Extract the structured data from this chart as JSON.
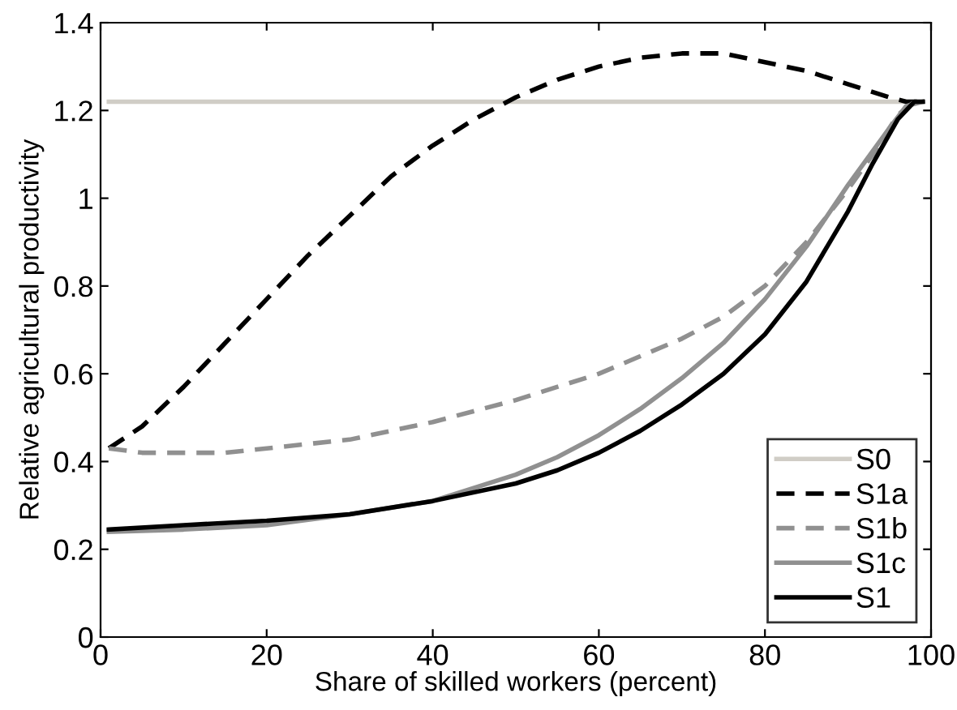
{
  "chart_data": {
    "type": "line",
    "xlabel": "Share of skilled workers (percent)",
    "ylabel": "Relative agricultural productivity",
    "xlim": [
      0,
      100
    ],
    "ylim": [
      0,
      1.4
    ],
    "xticks": [
      0,
      20,
      40,
      60,
      80,
      100
    ],
    "yticks": [
      0,
      0.2,
      0.4,
      0.6,
      0.8,
      1,
      1.2,
      1.4
    ],
    "grid": false,
    "legend": "bottom right",
    "series": [
      {
        "name": "S0",
        "color": "#d0cdc6",
        "line_style": "solid",
        "x": [
          1,
          99
        ],
        "values": [
          1.22,
          1.22
        ]
      },
      {
        "name": "S1a",
        "color": "#000000",
        "line_style": "dashed",
        "x": [
          1,
          5,
          10,
          15,
          20,
          25,
          30,
          35,
          40,
          45,
          50,
          55,
          60,
          65,
          70,
          75,
          80,
          85,
          90,
          95,
          97,
          99
        ],
        "values": [
          0.43,
          0.48,
          0.57,
          0.67,
          0.77,
          0.87,
          0.96,
          1.05,
          1.12,
          1.18,
          1.23,
          1.27,
          1.3,
          1.32,
          1.33,
          1.33,
          1.31,
          1.29,
          1.26,
          1.23,
          1.22,
          1.22
        ]
      },
      {
        "name": "S1b",
        "color": "#909090",
        "line_style": "dashed",
        "x": [
          1,
          5,
          10,
          15,
          20,
          30,
          40,
          50,
          60,
          70,
          75,
          80,
          85,
          90,
          93,
          96,
          98,
          99
        ],
        "values": [
          0.43,
          0.42,
          0.42,
          0.42,
          0.43,
          0.45,
          0.49,
          0.54,
          0.6,
          0.68,
          0.73,
          0.8,
          0.9,
          1.02,
          1.1,
          1.19,
          1.22,
          1.22
        ]
      },
      {
        "name": "S1c",
        "color": "#909090",
        "line_style": "solid",
        "x": [
          1,
          10,
          20,
          30,
          40,
          50,
          55,
          60,
          65,
          70,
          75,
          80,
          85,
          90,
          95,
          97,
          99
        ],
        "values": [
          0.24,
          0.245,
          0.255,
          0.28,
          0.31,
          0.37,
          0.41,
          0.46,
          0.52,
          0.59,
          0.67,
          0.77,
          0.89,
          1.03,
          1.16,
          1.21,
          1.22
        ]
      },
      {
        "name": "S1",
        "color": "#000000",
        "line_style": "solid",
        "x": [
          1,
          10,
          20,
          30,
          40,
          50,
          55,
          60,
          65,
          70,
          75,
          80,
          85,
          90,
          93,
          96,
          98,
          99
        ],
        "values": [
          0.245,
          0.255,
          0.265,
          0.28,
          0.31,
          0.35,
          0.38,
          0.42,
          0.47,
          0.53,
          0.6,
          0.69,
          0.81,
          0.97,
          1.08,
          1.18,
          1.22,
          1.22
        ]
      }
    ]
  }
}
